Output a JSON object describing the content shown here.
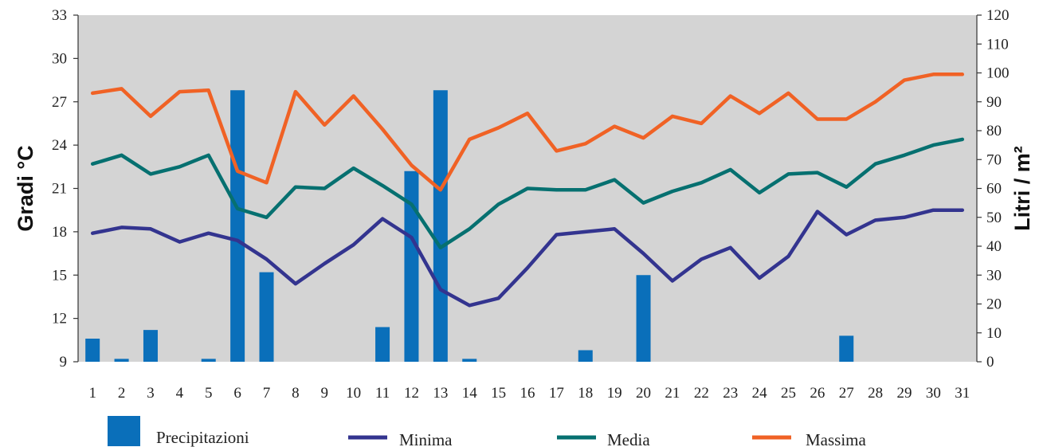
{
  "chart_data": {
    "type": "bar+line",
    "x": [
      1,
      2,
      3,
      4,
      5,
      6,
      7,
      8,
      9,
      10,
      11,
      12,
      13,
      14,
      15,
      16,
      17,
      18,
      19,
      20,
      21,
      22,
      23,
      24,
      25,
      26,
      27,
      28,
      29,
      30,
      31
    ],
    "left_axis": {
      "label": "Gradi °C",
      "ylim": [
        9,
        33
      ],
      "ticks": [
        9,
        12,
        15,
        18,
        21,
        24,
        27,
        30,
        33
      ]
    },
    "right_axis": {
      "label": "Litri / m²",
      "ylim": [
        0,
        120
      ],
      "ticks": [
        0,
        10,
        20,
        30,
        40,
        50,
        60,
        70,
        80,
        90,
        100,
        110,
        120
      ]
    },
    "grid": false,
    "bars": {
      "name": "Precipitazioni",
      "axis": "right",
      "color": "#0a6fba",
      "values": [
        8,
        1,
        11,
        0,
        1,
        94,
        31,
        0,
        0,
        0,
        12,
        66,
        94,
        1,
        0,
        0,
        0,
        4,
        0,
        30,
        0,
        0,
        0,
        0,
        0,
        0,
        9,
        0,
        0,
        0,
        0
      ]
    },
    "series": [
      {
        "name": "Minima",
        "axis": "left",
        "color": "#33348f",
        "values": [
          17.9,
          18.3,
          18.2,
          17.3,
          17.9,
          17.4,
          16.1,
          14.4,
          15.8,
          17.1,
          18.9,
          17.6,
          14.0,
          12.9,
          13.4,
          15.5,
          17.8,
          18.0,
          18.2,
          16.5,
          14.6,
          16.1,
          16.9,
          14.8,
          16.3,
          19.4,
          17.8,
          18.8,
          19.0,
          19.5,
          19.5
        ]
      },
      {
        "name": "Media",
        "axis": "left",
        "color": "#067070",
        "values": [
          22.7,
          23.3,
          22.0,
          22.5,
          23.3,
          19.6,
          19.0,
          21.1,
          21.0,
          22.4,
          21.2,
          19.9,
          16.9,
          18.2,
          19.9,
          21.0,
          20.9,
          20.9,
          21.6,
          20.0,
          20.8,
          21.4,
          22.3,
          20.7,
          22.0,
          22.1,
          21.1,
          22.7,
          23.3,
          24.0,
          24.4
        ]
      },
      {
        "name": "Massima",
        "axis": "left",
        "color": "#f06225",
        "values": [
          27.6,
          27.9,
          26.0,
          27.7,
          27.8,
          22.2,
          21.4,
          27.7,
          25.4,
          27.4,
          25.1,
          22.6,
          20.9,
          24.4,
          25.2,
          26.2,
          23.6,
          24.1,
          25.3,
          24.5,
          26.0,
          25.5,
          27.4,
          26.2,
          27.6,
          25.8,
          25.8,
          27.0,
          28.5,
          28.9,
          28.9
        ]
      }
    ],
    "legend": {
      "placement": "bottom",
      "items": [
        {
          "label": "Precipitazioni",
          "kind": "bar",
          "color": "#0a6fba"
        },
        {
          "label": "Minima",
          "kind": "line",
          "color": "#33348f"
        },
        {
          "label": "Media",
          "kind": "line",
          "color": "#067070"
        },
        {
          "label": "Massima",
          "kind": "line",
          "color": "#f06225"
        }
      ]
    },
    "plot_background": "#d4d4d4"
  }
}
